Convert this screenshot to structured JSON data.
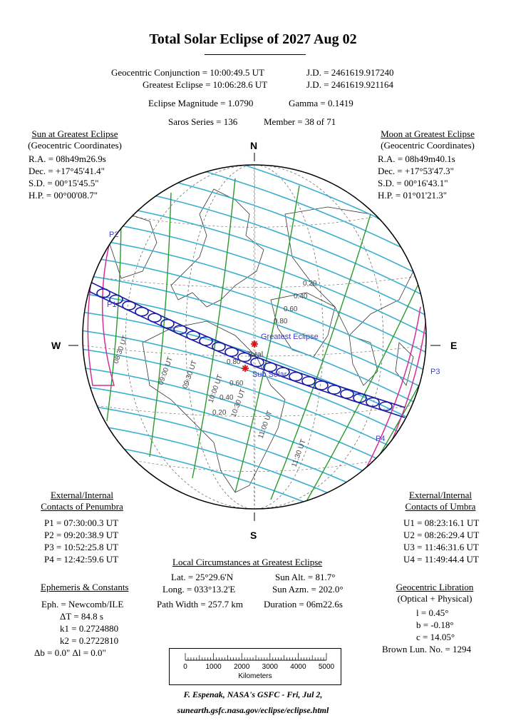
{
  "title": "Total Solar Eclipse of  2027 Aug 02",
  "header": {
    "conjunction": "Geocentric Conjunction =  10:00:49.5 UT",
    "conjunction_jd": "J.D. =  2461619.917240",
    "greatest": "Greatest Eclipse =  10:06:28.6 UT",
    "greatest_jd": "J.D. =  2461619.921164",
    "magnitude": "Eclipse Magnitude =  1.0790",
    "gamma": "Gamma =  0.1419",
    "saros": "Saros Series = 136",
    "member": "Member = 38 of 71"
  },
  "sun": {
    "title": "Sun at Greatest Eclipse",
    "subtitle": "(Geocentric Coordinates)",
    "ra": "R.A. = 08h49m26.9s",
    "dec": "Dec. = +17°45'41.4\"",
    "sd": "S.D. = 00°15'45.5\"",
    "hp": "H.P. = 00°00'08.7\""
  },
  "moon": {
    "title": "Moon at Greatest Eclipse",
    "subtitle": "(Geocentric Coordinates)",
    "ra": "R.A. = 08h49m40.1s",
    "dec": "Dec. = +17°53'47.3\"",
    "sd": "S.D. = 00°16'43.1\"",
    "hp": "H.P. = 01°01'21.3\""
  },
  "compass": {
    "n": "N",
    "s": "S",
    "e": "E",
    "w": "W"
  },
  "map": {
    "colors": {
      "central_path": "#1a1aa8",
      "magnitude_lines": "#3ab0d0",
      "time_lines": "#2a9a2a",
      "penumbra_limits": "#d0309a",
      "marker": "#e01010",
      "label": "#4040c0"
    },
    "labels": {
      "p1": "P1",
      "p2": "P2",
      "p3": "P3",
      "p4": "P4",
      "greatest": "Greatest Eclipse",
      "total": "Total",
      "sub_solar": "Sub Solar"
    },
    "magnitudes_north": [
      "0.20",
      "0.40",
      "0.60",
      "0.80"
    ],
    "magnitudes_south": [
      "0.80",
      "0.60",
      "0.40",
      "0.20"
    ],
    "times": [
      "08:30 UT",
      "09:00 UT",
      "09:30 UT",
      "10:00 UT",
      "10:30 UT",
      "11:00 UT",
      "11:30 UT"
    ]
  },
  "penumbra": {
    "title1": "External/Internal",
    "title2": "Contacts of Penumbra",
    "p1": "P1 = 07:30:00.3 UT",
    "p2": "P2 = 09:20:38.9 UT",
    "p3": "P3 = 10:52:25.8 UT",
    "p4": "P4 = 12:42:59.6 UT"
  },
  "umbra": {
    "title1": "External/Internal",
    "title2": "Contacts of Umbra",
    "u1": "U1 = 08:23:16.1 UT",
    "u2": "U2 = 08:26:29.4 UT",
    "u3": "U3 = 11:46:31.6 UT",
    "u4": "U4 = 11:49:44.4 UT"
  },
  "local": {
    "title": "Local Circumstances at Greatest Eclipse",
    "lat": "Lat. =  25°29.6'N",
    "long": "Long. = 033°13.2'E",
    "sun_alt": "Sun Alt. =   81.7°",
    "sun_azm": "Sun Azm. = 202.0°",
    "path_width": "Path Width = 257.7 km",
    "duration": "Duration =  06m22.6s"
  },
  "ephemeris": {
    "title": "Ephemeris & Constants",
    "eph": "Eph. = Newcomb/ILE",
    "dt": "ΔT =     84.8 s",
    "k1": "k1 = 0.2724880",
    "k2": "k2 = 0.2722810",
    "db": "Δb =   0.0\"     Δl =   0.0\""
  },
  "libration": {
    "title": "Geocentric Libration",
    "subtitle": "(Optical + Physical)",
    "l": "l =    0.45°",
    "b": "b =  -0.18°",
    "c": "c =  14.05°",
    "brown": "Brown Lun. No. = 1294"
  },
  "scale": {
    "ticks": [
      "0",
      "1000",
      "2000",
      "3000",
      "4000",
      "5000"
    ],
    "unit": "Kilometers"
  },
  "footer": {
    "credit": "F. Espenak, NASA's GSFC - Fri, Jul 2,",
    "url": "sunearth.gsfc.nasa.gov/eclipse/eclipse.html"
  }
}
